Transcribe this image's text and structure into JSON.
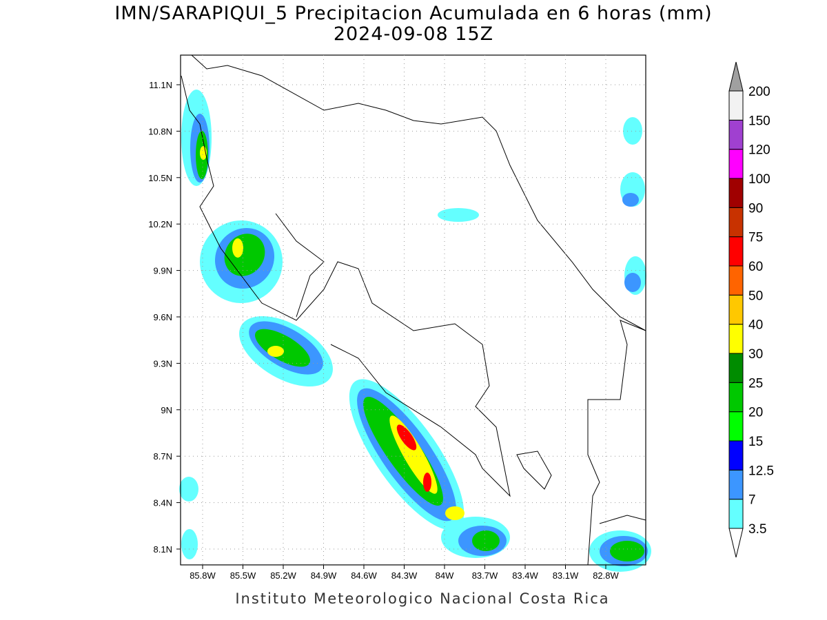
{
  "title": "IMN/SARAPIQUI_5 Precipitacion Acumulada en 6 horas (mm)",
  "subtitle": "2024-09-08 15Z",
  "map": {
    "lon_labels": [
      "85.8W",
      "85.5W",
      "85.2W",
      "84.9W",
      "84.6W",
      "84.3W",
      "84W",
      "83.7W",
      "83.4W",
      "83.1W",
      "82.8W"
    ],
    "lat_labels": [
      "11.1N",
      "10.8N",
      "10.5N",
      "10.2N",
      "9.9N",
      "9.6N",
      "9.3N",
      "9N",
      "8.7N",
      "8.4N",
      "8.1N"
    ]
  },
  "colorbar": {
    "levels": [
      3.5,
      7,
      12.5,
      15,
      20,
      25,
      30,
      40,
      50,
      60,
      75,
      90,
      100,
      120,
      150,
      200
    ],
    "colors": [
      "#ffffff",
      "#64ffff",
      "#3c96ff",
      "#0000ff",
      "#00ff00",
      "#00c800",
      "#008c00",
      "#ffff00",
      "#ffc800",
      "#ff6400",
      "#ff0000",
      "#c83200",
      "#a00000",
      "#ff00ff",
      "#a040d0",
      "#f2f2f2",
      "#a0a0a0"
    ]
  },
  "footer": "Instituto Meteorologico Nacional Costa Rica"
}
